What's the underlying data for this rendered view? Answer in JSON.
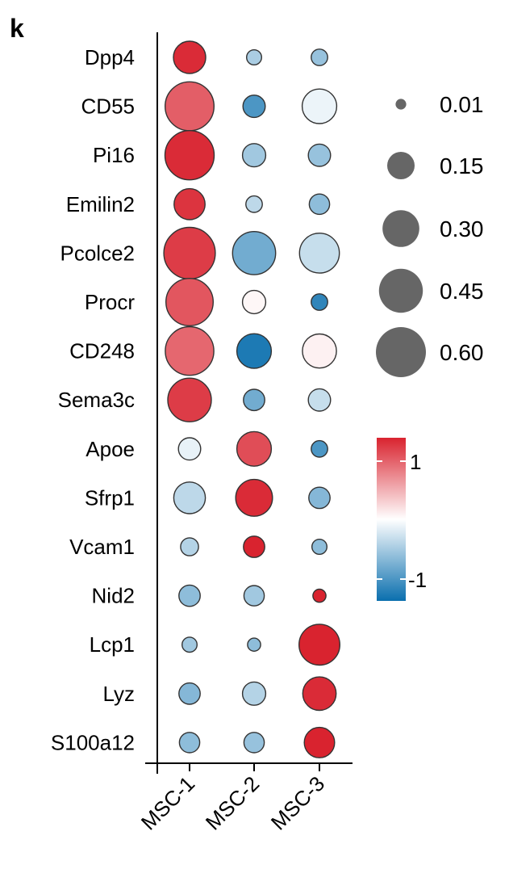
{
  "panel_label": "k",
  "chart_data": {
    "type": "dotplot",
    "categories": [
      "MSC-1",
      "MSC-2",
      "MSC-3"
    ],
    "genes": [
      "Dpp4",
      "CD55",
      "Pi16",
      "Emilin2",
      "Pcolce2",
      "Procr",
      "CD248",
      "Sema3c",
      "Apoe",
      "Sfrp1",
      "Vcam1",
      "Nid2",
      "Lcp1",
      "Lyz",
      "S100a12"
    ],
    "pct_expressed": [
      [
        0.22,
        0.03,
        0.04
      ],
      [
        0.57,
        0.09,
        0.26
      ],
      [
        0.58,
        0.1,
        0.09
      ],
      [
        0.2,
        0.04,
        0.07
      ],
      [
        0.64,
        0.43,
        0.36
      ],
      [
        0.53,
        0.1,
        0.04
      ],
      [
        0.56,
        0.26,
        0.25
      ],
      [
        0.44,
        0.08,
        0.09
      ],
      [
        0.09,
        0.26,
        0.04
      ],
      [
        0.21,
        0.3,
        0.08
      ],
      [
        0.05,
        0.08,
        0.03
      ],
      [
        0.08,
        0.07,
        0.02
      ],
      [
        0.03,
        0.02,
        0.38
      ],
      [
        0.08,
        0.1,
        0.24
      ],
      [
        0.07,
        0.07,
        0.19
      ]
    ],
    "avg_expression": [
      [
        1.25,
        -0.45,
        -0.55
      ],
      [
        0.95,
        -0.95,
        -0.1
      ],
      [
        1.25,
        -0.5,
        -0.55
      ],
      [
        1.2,
        -0.35,
        -0.6
      ],
      [
        1.15,
        -0.75,
        -0.3
      ],
      [
        1.0,
        0.05,
        -1.1
      ],
      [
        0.9,
        -1.2,
        0.08
      ],
      [
        1.15,
        -0.75,
        -0.3
      ],
      [
        -0.12,
        1.05,
        -0.95
      ],
      [
        -0.35,
        1.25,
        -0.65
      ],
      [
        -0.4,
        1.3,
        -0.6
      ],
      [
        -0.6,
        -0.5,
        1.35
      ],
      [
        -0.5,
        -0.6,
        1.35
      ],
      [
        -0.65,
        -0.4,
        1.25
      ],
      [
        -0.6,
        -0.55,
        1.3
      ]
    ],
    "size_legend": {
      "values": [
        0.01,
        0.15,
        0.3,
        0.45,
        0.6
      ],
      "labels": [
        "0.01",
        "0.15",
        "0.30",
        "0.45",
        "0.60"
      ]
    },
    "color_legend": {
      "labels": [
        "1",
        "-1"
      ],
      "range": [
        -1.3,
        1.3
      ],
      "colors": {
        "low": "#0a6fae",
        "mid": "#ffffff",
        "high": "#d9232f"
      }
    },
    "size_legend_color": "#666666"
  }
}
